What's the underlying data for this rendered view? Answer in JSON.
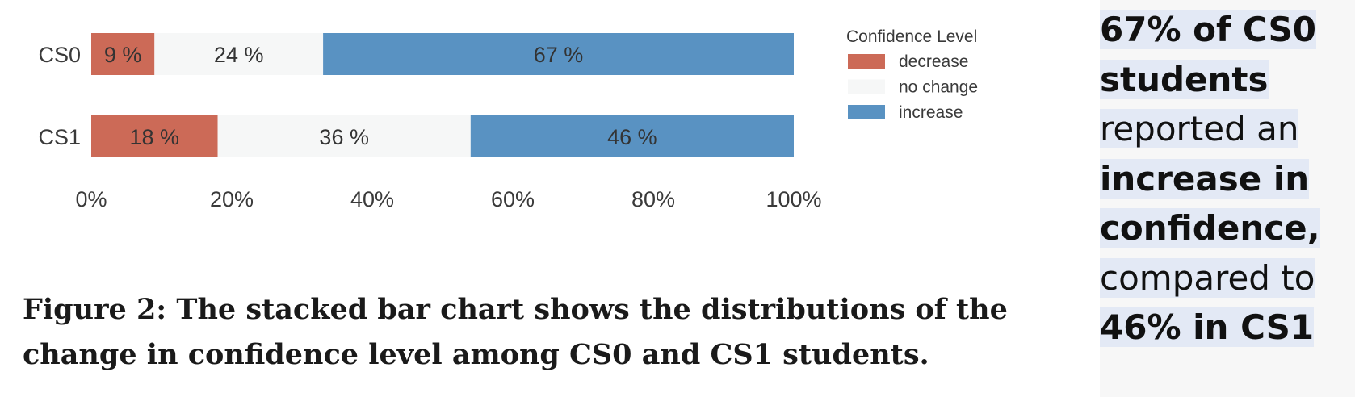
{
  "chart_data": {
    "type": "bar",
    "orientation": "horizontal",
    "stacked": true,
    "categories": [
      "CS0",
      "CS1"
    ],
    "series": [
      {
        "name": "decrease",
        "values": [
          9,
          18
        ],
        "labels": [
          "9 %",
          "18 %"
        ],
        "color": "#cc6a57"
      },
      {
        "name": "no change",
        "values": [
          24,
          36
        ],
        "labels": [
          "24 %",
          "36 %"
        ],
        "color": "#f6f7f7"
      },
      {
        "name": "increase",
        "values": [
          67,
          46
        ],
        "labels": [
          "67 %",
          "46 %"
        ],
        "color": "#5992c2"
      }
    ],
    "xlim": [
      0,
      100
    ],
    "xticks": [
      0,
      20,
      40,
      60,
      80,
      100
    ],
    "xtick_labels": [
      "0%",
      "20%",
      "40%",
      "60%",
      "80%",
      "100%"
    ],
    "legend_title": "Confidence Level",
    "legend_position": "top-right",
    "grid": false
  },
  "caption": "Figure 2: The stacked bar chart shows the distributions of the change in confidence level among CS0 and CS1 students.",
  "callout": {
    "segments": [
      {
        "text": "67% of CS0 students",
        "bold": true
      },
      {
        "text": " reported an ",
        "bold": false
      },
      {
        "text": "increase in confidence,",
        "bold": true
      },
      {
        "text": " compared to ",
        "bold": false
      },
      {
        "text": "46% in CS1",
        "bold": true
      }
    ]
  }
}
